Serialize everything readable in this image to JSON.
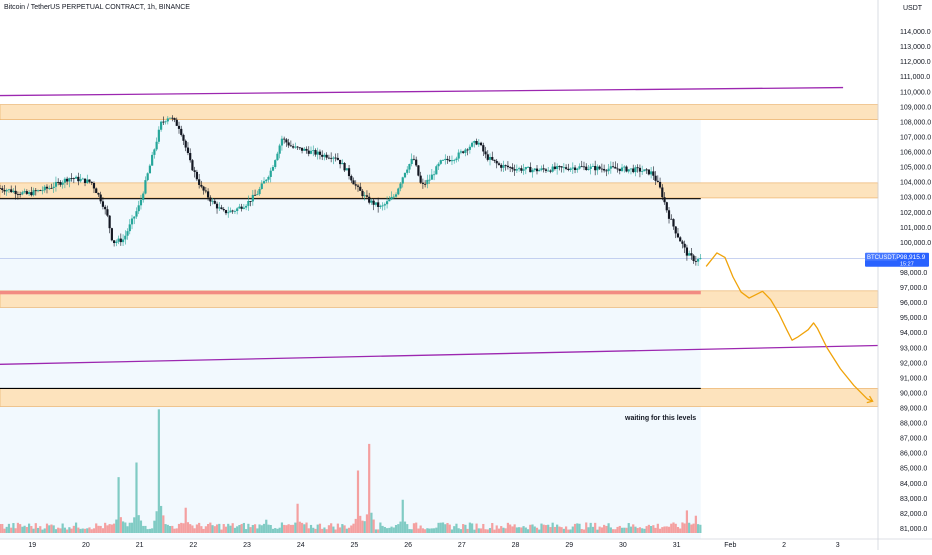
{
  "header": {
    "symbol_line": "Bitcoin / TetherUS PERPETUAL CONTRACT, 1h, BINANCE",
    "currency": "USDT"
  },
  "annotation": {
    "text": "waiting for this levels"
  },
  "price_tag": {
    "symbol": "BTCUSDT.P",
    "price": "98,915.9",
    "countdown": "15:27"
  },
  "colors": {
    "up": "#26a69a",
    "down": "#131722",
    "zone_fill": "#fde3bd",
    "zone_border": "#e8a85a",
    "channel": "#9c27b0",
    "forecast": "#f0a30a",
    "tag_bg": "#2962ff",
    "range_bg": "#e3f2fd",
    "red_band": "#f28b82",
    "vol_up": "#80cbc4",
    "vol_down": "#f4a0a0"
  },
  "chart_data": {
    "type": "candlestick",
    "x_unit": "days since 18 Jan, 00:00",
    "x_ticks": [
      {
        "v": 1,
        "label": "19"
      },
      {
        "v": 2,
        "label": "20"
      },
      {
        "v": 3,
        "label": "21"
      },
      {
        "v": 4,
        "label": "22"
      },
      {
        "v": 5,
        "label": "23"
      },
      {
        "v": 6,
        "label": "24"
      },
      {
        "v": 7,
        "label": "25"
      },
      {
        "v": 8,
        "label": "26"
      },
      {
        "v": 9,
        "label": "27"
      },
      {
        "v": 10,
        "label": "28"
      },
      {
        "v": 11,
        "label": "29"
      },
      {
        "v": 12,
        "label": "30"
      },
      {
        "v": 13,
        "label": "31"
      },
      {
        "v": 14,
        "label": "Feb"
      },
      {
        "v": 15,
        "label": "2"
      },
      {
        "v": 16,
        "label": "3"
      }
    ],
    "xlim": [
      0.4,
      16.75
    ],
    "ylim": [
      80300,
      115100
    ],
    "y_ticks": [
      81000,
      82000,
      83000,
      84000,
      85000,
      86000,
      87000,
      88000,
      89000,
      90000,
      91000,
      92000,
      93000,
      94000,
      95000,
      96000,
      97000,
      98000,
      99000,
      100000,
      101000,
      102000,
      103000,
      104000,
      105000,
      106000,
      107000,
      108000,
      109000,
      110000,
      111000,
      112000,
      113000,
      114000
    ],
    "y_tick_labels": [
      "81,000.0",
      "82,000.0",
      "83,000.0",
      "84,000.0",
      "85,000.0",
      "86,000.0",
      "87,000.0",
      "88,000.0",
      "89,000.0",
      "90,000.0",
      "91,000.0",
      "92,000.0",
      "93,000.0",
      "94,000.0",
      "95,000.0",
      "96,000.0",
      "97,000.0",
      "98,000.0",
      "99,000.0",
      "100,000.0",
      "101,000.0",
      "102,000.0",
      "103,000.0",
      "104,000.0",
      "105,000.0",
      "106,000.0",
      "107,000.0",
      "108,000.0",
      "109,000.0",
      "110,000.0",
      "111,000.0",
      "112,000.0",
      "113,000.0",
      "114,000.0"
    ],
    "path_points": [
      [
        0.4,
        103.6
      ],
      [
        0.9,
        103.2
      ],
      [
        1.3,
        103.6
      ],
      [
        1.7,
        104.3
      ],
      [
        2.1,
        104.0
      ],
      [
        2.3,
        102.7
      ],
      [
        2.4,
        101.7
      ],
      [
        2.5,
        100.0
      ],
      [
        2.7,
        100.2
      ],
      [
        3.0,
        102.5
      ],
      [
        3.2,
        105.2
      ],
      [
        3.4,
        107.9
      ],
      [
        3.55,
        108.4
      ],
      [
        3.75,
        107.6
      ],
      [
        3.95,
        105.2
      ],
      [
        4.15,
        103.6
      ],
      [
        4.35,
        102.7
      ],
      [
        4.55,
        102.0
      ],
      [
        4.75,
        102.1
      ],
      [
        5.0,
        102.6
      ],
      [
        5.2,
        103.3
      ],
      [
        5.45,
        104.8
      ],
      [
        5.65,
        106.9
      ],
      [
        5.85,
        106.3
      ],
      [
        6.1,
        106.1
      ],
      [
        6.4,
        105.8
      ],
      [
        6.65,
        105.7
      ],
      [
        6.85,
        104.8
      ],
      [
        7.05,
        103.6
      ],
      [
        7.25,
        102.8
      ],
      [
        7.5,
        102.3
      ],
      [
        7.75,
        103.1
      ],
      [
        7.95,
        104.8
      ],
      [
        8.1,
        105.6
      ],
      [
        8.25,
        103.7
      ],
      [
        8.4,
        104.2
      ],
      [
        8.6,
        105.3
      ],
      [
        8.9,
        105.7
      ],
      [
        9.1,
        106.3
      ],
      [
        9.3,
        106.7
      ],
      [
        9.45,
        105.7
      ],
      [
        9.7,
        105.1
      ],
      [
        10.0,
        104.9
      ],
      [
        10.4,
        104.8
      ],
      [
        10.8,
        104.9
      ],
      [
        11.2,
        105.0
      ],
      [
        11.6,
        104.9
      ],
      [
        11.9,
        104.9
      ],
      [
        12.3,
        104.8
      ],
      [
        12.55,
        104.6
      ],
      [
        12.7,
        103.5
      ],
      [
        12.85,
        101.8
      ],
      [
        13.0,
        100.6
      ],
      [
        13.2,
        99.2
      ],
      [
        13.35,
        98.8
      ],
      [
        13.45,
        98.9
      ]
    ],
    "volume_peaks": [
      [
        2.62,
        4.2
      ],
      [
        2.95,
        5.3
      ],
      [
        3.37,
        9.3
      ],
      [
        3.87,
        1.9
      ],
      [
        5.35,
        1.0
      ],
      [
        5.95,
        2.2
      ],
      [
        7.08,
        4.7
      ],
      [
        7.28,
        6.7
      ],
      [
        7.9,
        2.5
      ],
      [
        13.2,
        1.7
      ],
      [
        13.35,
        1.3
      ]
    ],
    "volume_scale_max": 10,
    "last_price": 98915.9,
    "zones": [
      {
        "from": 108150,
        "to": 109150
      },
      {
        "from": 102950,
        "to": 103950
      },
      {
        "from": 95680,
        "to": 96780
      },
      {
        "from": 89100,
        "to": 90300
      }
    ],
    "red_band": {
      "from": 96550,
      "to": 96780
    },
    "horizontal_lines": [
      {
        "y": 102900,
        "x_end": 13.45,
        "color": "#000000"
      },
      {
        "y": 90300,
        "x_end": 13.45,
        "color": "#000000"
      }
    ],
    "channel_lines": [
      {
        "p1": [
          0.4,
          109750
        ],
        "p2": [
          16.1,
          110280
        ]
      },
      {
        "p1": [
          0.4,
          91900
        ],
        "p2": [
          16.75,
          93150
        ]
      }
    ],
    "range_box": {
      "x0": 0.4,
      "x1": 13.45,
      "y0": 80300,
      "y1": 109150
    },
    "forecast_path": [
      [
        13.55,
        98400
      ],
      [
        13.75,
        99300
      ],
      [
        13.9,
        99000
      ],
      [
        14.05,
        97700
      ],
      [
        14.2,
        96700
      ],
      [
        14.35,
        96300
      ],
      [
        14.6,
        96750
      ],
      [
        14.75,
        96200
      ],
      [
        14.9,
        95300
      ],
      [
        15.05,
        94200
      ],
      [
        15.15,
        93500
      ],
      [
        15.25,
        93700
      ],
      [
        15.45,
        94200
      ],
      [
        15.55,
        94650
      ],
      [
        15.62,
        94300
      ],
      [
        15.8,
        93000
      ],
      [
        16.05,
        91600
      ],
      [
        16.3,
        90500
      ],
      [
        16.55,
        89600
      ],
      [
        16.65,
        89450
      ]
    ]
  }
}
